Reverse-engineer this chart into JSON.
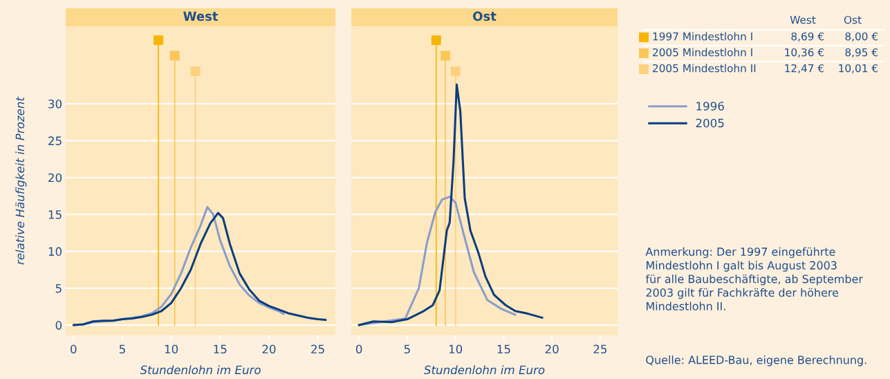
{
  "chart_data": [
    {
      "type": "line",
      "title": "West",
      "xlabel": "Stundenlohn im Euro",
      "ylabel": "relative Häufigkeit in Prozent",
      "xlim": [
        -0.8,
        26.8
      ],
      "ylim": [
        -1.4,
        40.5
      ],
      "xticks": [
        0,
        5,
        10,
        15,
        20,
        25
      ],
      "yticks": [
        0,
        5,
        10,
        15,
        20,
        25,
        30
      ],
      "grid": "y",
      "legend": false,
      "series": [
        {
          "color": "#8c9dcb",
          "x": [
            0,
            1,
            2,
            3,
            4,
            5,
            6,
            7,
            8,
            9,
            10,
            11,
            12,
            13,
            13.7,
            14.3,
            15,
            16,
            17,
            18,
            19,
            20,
            21,
            21.5
          ],
          "values": [
            0,
            0.1,
            0.4,
            0.5,
            0.6,
            0.8,
            1.0,
            1.2,
            1.6,
            2.5,
            4.2,
            7.0,
            10.5,
            13.5,
            16.0,
            15.0,
            11.5,
            8.0,
            5.5,
            4.0,
            3.0,
            2.4,
            1.9,
            1.5
          ]
        },
        {
          "color": "#0a3d7e",
          "x": [
            0,
            1,
            2,
            3,
            4,
            5,
            6,
            7,
            8,
            9,
            10,
            11,
            12,
            13,
            14,
            14.8,
            15.3,
            16,
            17,
            18,
            19,
            20,
            21,
            22,
            23,
            24,
            25,
            25.8
          ],
          "values": [
            0,
            0.1,
            0.5,
            0.6,
            0.6,
            0.8,
            0.9,
            1.1,
            1.4,
            1.9,
            3.0,
            5.0,
            7.5,
            11.0,
            13.8,
            15.2,
            14.5,
            11.0,
            7.0,
            4.8,
            3.3,
            2.6,
            2.1,
            1.6,
            1.3,
            1.0,
            0.8,
            0.7
          ]
        }
      ],
      "ref_lines": [
        {
          "axis": "x",
          "value": 8.69,
          "color": "#f7b500"
        },
        {
          "axis": "x",
          "value": 10.36,
          "color": "#fcc659"
        },
        {
          "axis": "x",
          "value": 12.47,
          "color": "#fdd27f"
        }
      ]
    },
    {
      "type": "line",
      "title": "Ost",
      "xlabel": "Stundenlohn im Euro",
      "xlim": [
        -0.8,
        26.8
      ],
      "ylim": [
        -1.4,
        40.5
      ],
      "xticks": [
        0,
        5,
        10,
        15,
        20,
        25
      ],
      "yticks": [
        0,
        5,
        10,
        15,
        20,
        25,
        30
      ],
      "grid": "y",
      "legend": "right",
      "tick_labels": "x",
      "series": [
        {
          "name": "1996",
          "color": "#8c9dcb",
          "x": [
            0,
            4.8,
            6.2,
            7.05,
            7.9,
            8.6,
            9.4,
            10.0,
            11.0,
            11.9,
            13.3,
            14.75,
            16.2
          ],
          "values": [
            0,
            0.9,
            5.0,
            11.2,
            15.3,
            17.0,
            17.4,
            16.6,
            11.6,
            7.2,
            3.4,
            2.2,
            1.4
          ]
        },
        {
          "name": "2005",
          "color": "#0a3d7e",
          "x": [
            0,
            1.5,
            3.4,
            5.0,
            6.7,
            7.65,
            8.35,
            9.1,
            9.4,
            9.8,
            10.13,
            10.5,
            10.96,
            11.55,
            12.4,
            13.1,
            14.0,
            15.2,
            16.2,
            17.35,
            19.0
          ],
          "values": [
            0,
            0.5,
            0.4,
            0.8,
            1.9,
            2.7,
            4.7,
            12.8,
            13.9,
            22.2,
            32.6,
            29.0,
            17.2,
            12.8,
            9.7,
            6.6,
            4.1,
            2.7,
            1.9,
            1.6,
            1.0
          ]
        }
      ],
      "ref_lines": [
        {
          "axis": "x",
          "value": 8.0,
          "color": "#f7b500"
        },
        {
          "axis": "x",
          "value": 8.95,
          "color": "#fcc659"
        },
        {
          "axis": "x",
          "value": 10.01,
          "color": "#fdd27f"
        }
      ],
      "annotations": [
        "Anmerkung: Der 1997 eingeführte\nMindestlohn I galt bis August 2003\nfür alle Baubeschäftigte, ab September\n2003 gilt für Fachkräfte der höhere\nMindestlohn II.",
        "Quelle: ALEED-Bau, eigene Berechnung."
      ]
    },
    {
      "type": "other",
      "categories": [
        "West",
        "Ost"
      ],
      "y_categories": [
        "1997 Mindestlohn I",
        "2005 Mindestlohn I",
        "2005 Mindestlohn II"
      ],
      "colors": [
        "#f7b500",
        "#fcc659",
        "#fdd27f"
      ],
      "cell_labels": [
        [
          "8,69 €",
          "8,00 €"
        ],
        [
          "10,36 €",
          "8,95 €"
        ],
        [
          "12,47 €",
          "10,01 €"
        ]
      ]
    }
  ]
}
